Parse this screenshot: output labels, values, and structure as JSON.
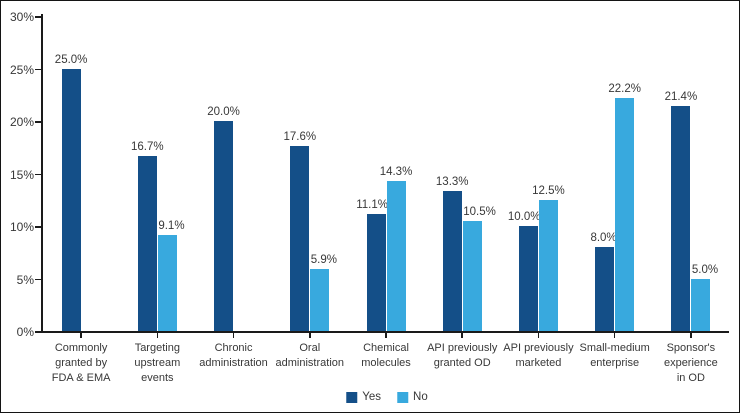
{
  "chart_data": {
    "type": "bar",
    "title": "",
    "xlabel": "",
    "ylabel": "",
    "grid": false,
    "legend_position": "bottom",
    "categories": [
      "Commonly\ngranted by\nFDA & EMA",
      "Targeting\nupstream\nevents",
      "Chronic\nadministration",
      "Oral\nadministration",
      "Chemical\nmolecules",
      "API previously\ngranted OD",
      "API previously\nmarketed",
      "Small-medium\nenterprise",
      "Sponsor's\nexperience\nin OD"
    ],
    "series": [
      {
        "name": "Yes",
        "color": "#144f88",
        "values": [
          25.0,
          16.7,
          20.0,
          17.6,
          11.1,
          13.3,
          10.0,
          8.0,
          21.4
        ],
        "labels": [
          "25.0%",
          "16.7%",
          "20.0%",
          "17.6%",
          "11.1%",
          "13.3%",
          "10.0%",
          "8.0%",
          "21.4%"
        ]
      },
      {
        "name": "No",
        "color": "#38a9de",
        "values": [
          null,
          9.1,
          null,
          5.9,
          14.3,
          10.5,
          12.5,
          22.2,
          5.0
        ],
        "labels": [
          null,
          "9.1%",
          null,
          "5.9%",
          "14.3%",
          "10.5%",
          "12.5%",
          "22.2%",
          "5.0%"
        ]
      }
    ],
    "y_axis": {
      "min": 0,
      "max": 30,
      "step": 5,
      "ticks": [
        0,
        5,
        10,
        15,
        20,
        25,
        30
      ],
      "tick_labels": [
        "0%",
        "5%",
        "10%",
        "15%",
        "20%",
        "25%",
        "30%"
      ]
    }
  },
  "colors": {
    "axis": "#1a1a1a",
    "text": "#383838",
    "background": "#ffffff"
  }
}
